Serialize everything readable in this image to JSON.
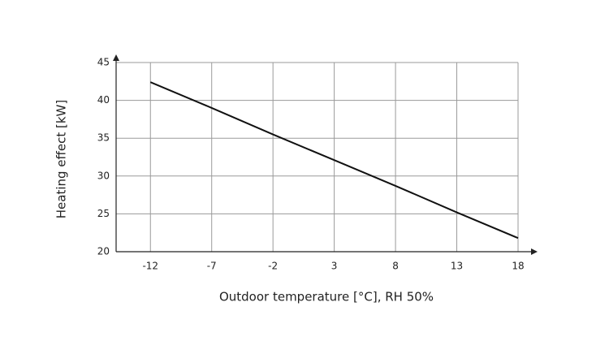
{
  "chart_data": {
    "type": "line",
    "x_label": "Outdoor temperature [°C], RH 50%",
    "y_label": "Heating effect [kW]",
    "x": [
      -12,
      -7,
      -2,
      3,
      8,
      13,
      18
    ],
    "values": [
      42.4,
      39.0,
      35.5,
      32.1,
      28.7,
      25.2,
      21.8
    ],
    "color": "#111111",
    "xlim": [
      -14.8,
      18
    ],
    "xticks": [
      -12,
      -7,
      -2,
      3,
      8,
      13,
      18
    ],
    "ylim": [
      20,
      45
    ],
    "yticks": [
      20,
      25,
      30,
      35,
      40,
      45
    ],
    "grid": true
  }
}
